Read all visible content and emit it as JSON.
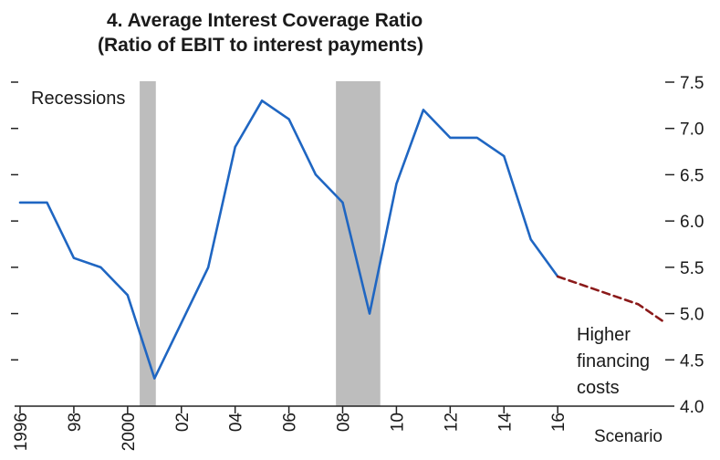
{
  "chart_data": {
    "type": "line",
    "title_line1": "4. Average Interest Coverage Ratio",
    "title_line2": "(Ratio of EBIT to interest payments)",
    "x_tick_labels": [
      "1996",
      "98",
      "2000",
      "02",
      "04",
      "06",
      "08",
      "10",
      "12",
      "14",
      "16",
      "Scenario"
    ],
    "y_tick_labels": [
      "4.0",
      "4.5",
      "5.0",
      "5.5",
      "6.0",
      "6.5",
      "7.0",
      "7.5"
    ],
    "ylim": [
      4.0,
      7.5
    ],
    "y_axis_side": "right",
    "series": [
      {
        "type": "line",
        "style": "solid",
        "x": [
          1996,
          1997,
          1998,
          1999,
          2000,
          2001,
          2002,
          2003,
          2004,
          2005,
          2006,
          2007,
          2008,
          2009,
          2010,
          2011,
          2012,
          2013,
          2014,
          2015,
          2016
        ],
        "y": [
          6.2,
          6.2,
          5.6,
          5.5,
          5.2,
          4.3,
          4.9,
          5.5,
          6.8,
          7.3,
          7.1,
          6.5,
          6.2,
          5.0,
          6.4,
          7.2,
          6.9,
          6.9,
          6.7,
          5.8,
          5.4
        ]
      },
      {
        "type": "line",
        "style": "dashed",
        "x": [
          2016,
          2017,
          2018,
          2019,
          2020
        ],
        "y": [
          5.4,
          5.3,
          5.2,
          5.1,
          4.9
        ]
      }
    ],
    "recessions": [
      [
        2000.45,
        2001.05
      ],
      [
        2007.75,
        2009.4
      ]
    ],
    "annotations": {
      "recessions_label": "Recessions",
      "scenario_label_lines": [
        "Higher",
        "financing",
        "costs"
      ]
    },
    "colors": {
      "line": "#1f66c2",
      "scenario": "#8b1a1a",
      "recession": "#bdbdbd",
      "axis": "#222222"
    }
  }
}
